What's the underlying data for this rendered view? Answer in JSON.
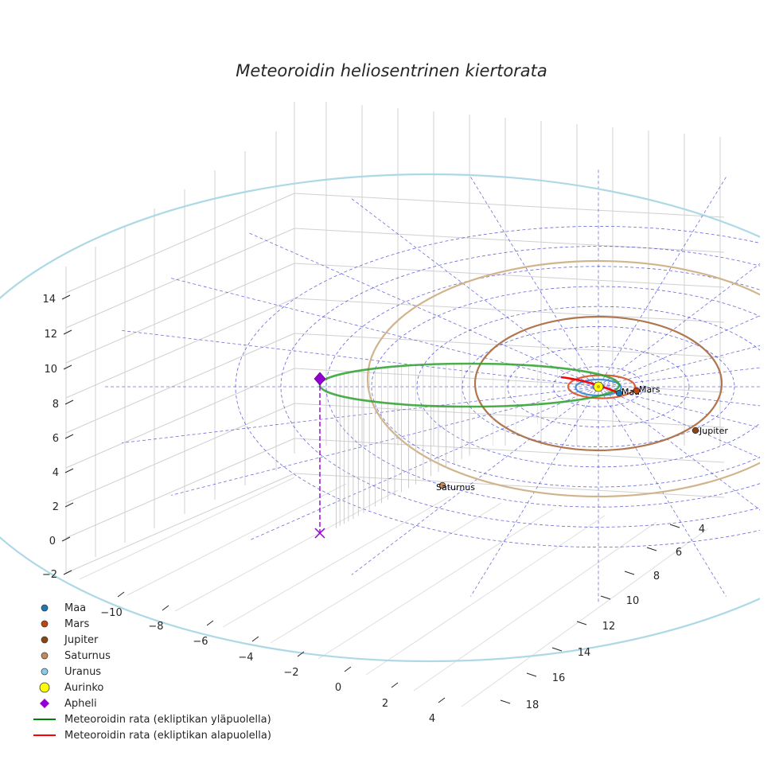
{
  "chart_data": {
    "type": "3d-line",
    "title": "Meteoroidin heliosentrinen kiertorata",
    "xlabel": "",
    "ylabel": "",
    "zlabel": "",
    "xlim": [
      -11,
      5
    ],
    "ylim": [
      2,
      19
    ],
    "zlim": [
      -2,
      15
    ],
    "x_ticks": [
      "−10",
      "−8",
      "−6",
      "−4",
      "−2",
      "0",
      "2",
      "4"
    ],
    "y_ticks": [
      "4",
      "6",
      "8",
      "10",
      "12",
      "14",
      "16",
      "18"
    ],
    "z_ticks": [
      "−2",
      "0",
      "2",
      "4",
      "6",
      "8",
      "10",
      "12",
      "14"
    ],
    "grid": true,
    "legend_position": "lower-left",
    "planets": [
      {
        "name": "Maa",
        "label": "Maa",
        "semi_major_axis_au": 1.0,
        "color": "#1f77b4",
        "orbit_color": "#4a90d9"
      },
      {
        "name": "Mars",
        "label": "Mars",
        "semi_major_axis_au": 1.52,
        "color": "#c1440e",
        "orbit_color": "#d9603b"
      },
      {
        "name": "Jupiter",
        "label": "Jupiter",
        "semi_major_axis_au": 5.2,
        "color": "#8b4513",
        "orbit_color": "#b0764f"
      },
      {
        "name": "Saturnus",
        "label": "Saturnus",
        "semi_major_axis_au": 9.54,
        "color": "#c48a5c",
        "orbit_color": "#d2b48c"
      },
      {
        "name": "Uranus",
        "label": "",
        "semi_major_axis_au": 19.2,
        "color": "#87ceeb",
        "orbit_color": "#add8e6"
      }
    ],
    "sun": {
      "name": "Aurinko",
      "x": 0,
      "y": 0,
      "z": 0,
      "color": "#ffff00"
    },
    "meteoroid_orbit": {
      "semi_major_axis_au": 6.0,
      "eccentricity": 0.85,
      "perihelion_au": 0.9,
      "aphelion_au": 11.1,
      "color_above": "#2ca02c",
      "color_below": "#ff0000"
    },
    "aphelion": {
      "name": "Apheli",
      "color": "#9400d3",
      "distance_au": 11.1
    },
    "reference_grid": {
      "rings_au": [
        2,
        4,
        6,
        8,
        10,
        12,
        14,
        16
      ],
      "radial_lines": 12,
      "color": "#3333cc"
    },
    "legend": [
      {
        "label": "Maa",
        "marker": "dot",
        "color": "#1f77b4"
      },
      {
        "label": "Mars",
        "marker": "dot",
        "color": "#c1440e"
      },
      {
        "label": "Jupiter",
        "marker": "dot",
        "color": "#8b4513"
      },
      {
        "label": "Saturnus",
        "marker": "dot",
        "color": "#c48a5c"
      },
      {
        "label": "Uranus",
        "marker": "dot",
        "color": "#87ceeb"
      },
      {
        "label": "Aurinko",
        "marker": "bigdot",
        "color": "#ffff00"
      },
      {
        "label": "Apheli",
        "marker": "diamond",
        "color": "#9400d3"
      },
      {
        "label": "Meteoroidin rata (ekliptikan yläpuolella)",
        "marker": "line",
        "color": "#008000"
      },
      {
        "label": "Meteoroidin rata (ekliptikan alapuolella)",
        "marker": "line",
        "color": "#ff0000"
      }
    ]
  }
}
